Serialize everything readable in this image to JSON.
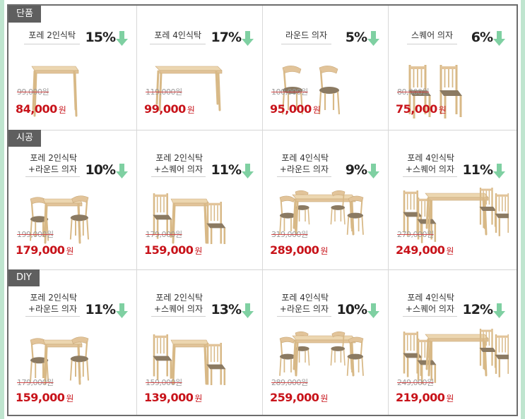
{
  "sections": [
    {
      "tab": "단품",
      "items": [
        {
          "name1": "포레 2인식탁",
          "name2": "",
          "discount": "15%",
          "old_price": "99,000원",
          "new_price": "84,000",
          "won": "원",
          "image": "table-2-seater"
        },
        {
          "name1": "포레 4인식탁",
          "name2": "",
          "discount": "17%",
          "old_price": "119,000원",
          "new_price": "99,000",
          "won": "원",
          "image": "table-4-seater"
        },
        {
          "name1": "라운드 의자",
          "name2": "",
          "discount": "5%",
          "old_price": "100,000원",
          "new_price": "95,000",
          "won": "원",
          "image": "round-chairs"
        },
        {
          "name1": "스퀘어 의자",
          "name2": "",
          "discount": "6%",
          "old_price": "80,000원",
          "new_price": "75,000",
          "won": "원",
          "image": "square-chairs"
        }
      ]
    },
    {
      "tab": "시공",
      "items": [
        {
          "name1": "포레 2인식탁",
          "name2": "+라운드 의자",
          "discount": "10%",
          "old_price": "199,000원",
          "new_price": "179,000",
          "won": "원",
          "image": "set-2-round"
        },
        {
          "name1": "포레 2인식탁",
          "name2": "+스퀘어 의자",
          "discount": "11%",
          "old_price": "179,000원",
          "new_price": "159,000",
          "won": "원",
          "image": "set-2-square"
        },
        {
          "name1": "포레 4인식탁",
          "name2": "+라운드 의자",
          "discount": "9%",
          "old_price": "319,000원",
          "new_price": "289,000",
          "won": "원",
          "image": "set-4-round"
        },
        {
          "name1": "포레 4인식탁",
          "name2": "+스퀘어 의자",
          "discount": "11%",
          "old_price": "279,000원",
          "new_price": "249,000",
          "won": "원",
          "image": "set-4-square"
        }
      ]
    },
    {
      "tab": "DIY",
      "items": [
        {
          "name1": "포레 2인식탁",
          "name2": "+라운드 의자",
          "discount": "11%",
          "old_price": "179,000원",
          "new_price": "159,000",
          "won": "원",
          "image": "set-2-round"
        },
        {
          "name1": "포레 2인식탁",
          "name2": "+스퀘어 의자",
          "discount": "13%",
          "old_price": "159,000원",
          "new_price": "139,000",
          "won": "원",
          "image": "set-2-square"
        },
        {
          "name1": "포레 4인식탁",
          "name2": "+라운드 의자",
          "discount": "10%",
          "old_price": "289,000원",
          "new_price": "259,000",
          "won": "원",
          "image": "set-4-round"
        },
        {
          "name1": "포레 4인식탁",
          "name2": "+스퀘어 의자",
          "discount": "12%",
          "old_price": "249,000원",
          "new_price": "219,000",
          "won": "원",
          "image": "set-4-square"
        }
      ]
    }
  ],
  "colors": {
    "price": "#c8131a",
    "arrow": "#7fd0a2",
    "tab_bg": "#5f5f5f",
    "wood": "#e2c49a",
    "seat": "#8b7a62"
  }
}
